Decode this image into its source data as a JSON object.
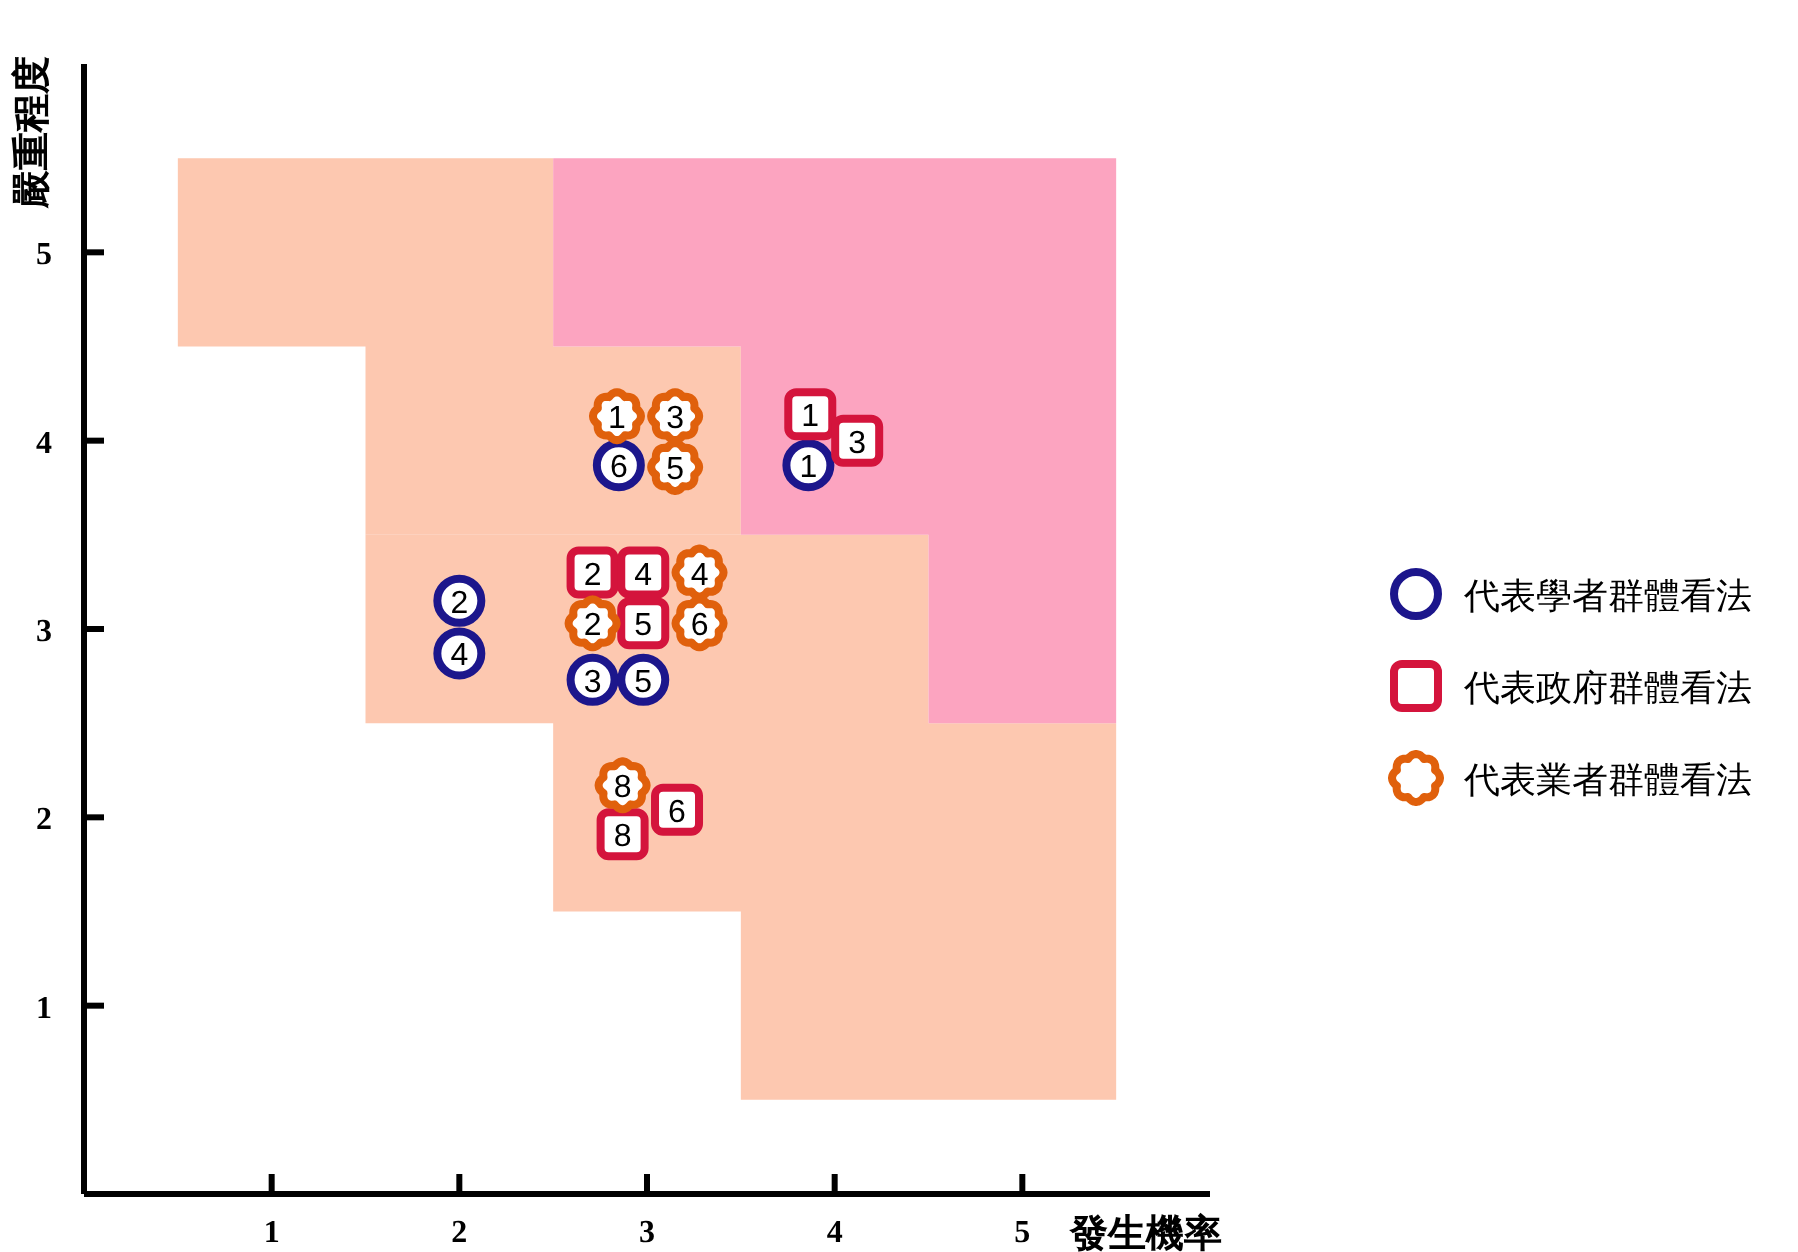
{
  "chart_data": {
    "type": "scatter",
    "xlabel": "發生機率",
    "ylabel": "嚴重程度",
    "xlim": [
      0,
      6
    ],
    "ylim": [
      0,
      6
    ],
    "xticks": [
      1,
      2,
      3,
      4,
      5
    ],
    "yticks": [
      1,
      2,
      3,
      4,
      5
    ],
    "legend": "right",
    "series": [
      {
        "name": "代表學者群體看法",
        "color": "#1c168c",
        "marker": "circle",
        "x": [
          2.85,
          3.86,
          2.0,
          2.0,
          2.71,
          2.98
        ],
        "values": [
          3.87,
          3.87,
          3.15,
          2.87,
          2.73,
          2.73
        ]
      },
      {
        "name": "代表政府群體看法",
        "color": "#d4143c",
        "marker": "square",
        "x": [
          3.87,
          4.12,
          2.71,
          2.98,
          2.98,
          3.16,
          2.87
        ],
        "values": [
          4.14,
          4.0,
          3.3,
          3.3,
          3.03,
          2.04,
          1.91
        ]
      },
      {
        "name": "代表業者群體看法",
        "color": "#e0600c",
        "marker": "star",
        "x": [
          2.84,
          3.15,
          3.15,
          3.28,
          2.71,
          3.28,
          2.87
        ],
        "values": [
          4.13,
          4.13,
          3.86,
          3.3,
          3.03,
          3.03,
          2.17
        ]
      }
    ],
    "annotations": [
      {
        "text": "6",
        "x": 2.85,
        "y": 3.87
      },
      {
        "text": "1",
        "x": 3.86,
        "y": 3.87
      },
      {
        "text": "2",
        "x": 2.0,
        "y": 3.15
      },
      {
        "text": "4",
        "x": 2.0,
        "y": 2.87
      },
      {
        "text": "3",
        "x": 2.71,
        "y": 2.73
      },
      {
        "text": "5",
        "x": 2.98,
        "y": 2.73
      },
      {
        "text": "1",
        "x": 3.87,
        "y": 4.14
      },
      {
        "text": "3",
        "x": 4.12,
        "y": 4.0
      },
      {
        "text": "2",
        "x": 2.71,
        "y": 3.3
      },
      {
        "text": "4",
        "x": 2.98,
        "y": 3.3
      },
      {
        "text": "5",
        "x": 2.98,
        "y": 3.03
      },
      {
        "text": "6",
        "x": 3.16,
        "y": 2.04
      },
      {
        "text": "8",
        "x": 2.87,
        "y": 1.91
      },
      {
        "text": "1",
        "x": 2.84,
        "y": 4.13
      },
      {
        "text": "3",
        "x": 3.15,
        "y": 4.13
      },
      {
        "text": "5",
        "x": 3.15,
        "y": 3.86
      },
      {
        "text": "4",
        "x": 3.28,
        "y": 3.3
      },
      {
        "text": "2",
        "x": 2.71,
        "y": 3.03
      },
      {
        "text": "6",
        "x": 3.28,
        "y": 3.03
      },
      {
        "text": "8",
        "x": 2.87,
        "y": 2.17
      }
    ]
  }
}
